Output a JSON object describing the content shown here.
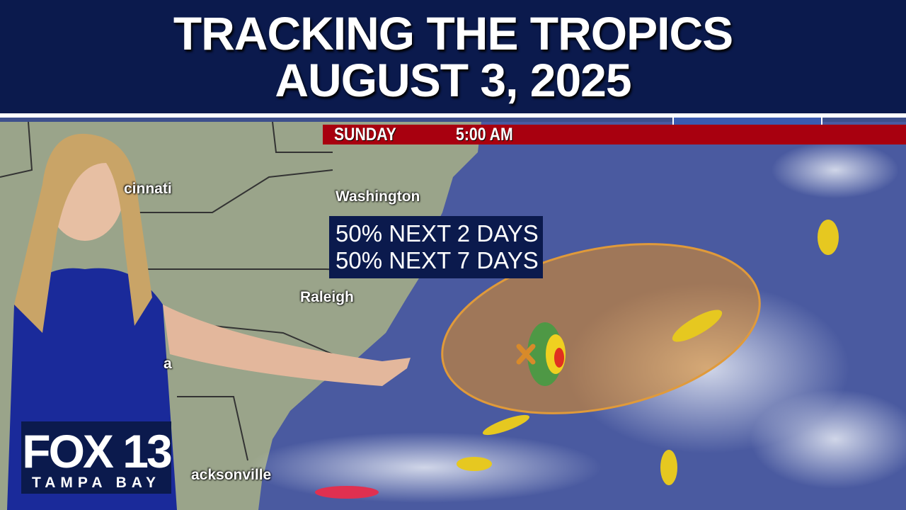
{
  "header": {
    "title_line1": "TRACKING THE TROPICS",
    "title_line2": "AUGUST 3, 2025"
  },
  "timebar": {
    "day": "SUNDAY",
    "time": "5:00 AM"
  },
  "outlook": {
    "line1": "50% NEXT 2 DAYS",
    "line2": "50% NEXT 7 DAYS",
    "chance_2_day_percent": 50,
    "chance_7_day_percent": 50,
    "area_color": "#d88a2a",
    "center_marker": "x-icon"
  },
  "cities": {
    "cincinnati": "cinnati",
    "washington": "Washington",
    "raleigh": "Raleigh",
    "partial": "a",
    "jacksonville": "acksonville"
  },
  "logo": {
    "name": "FOX 13",
    "subtitle": "TAMPA BAY"
  },
  "colors": {
    "header_bg": "#0b1a4d",
    "timebar_bg": "#a8000f",
    "ocean": "#4a5aa0",
    "land": "#9aa48a"
  }
}
